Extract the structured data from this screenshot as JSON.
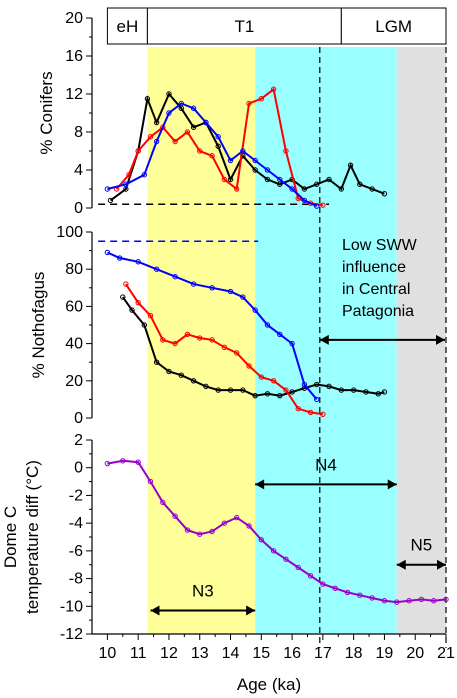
{
  "chart_data": [
    {
      "panel": "conifers",
      "type": "line",
      "ylabel": "% Conifers",
      "ylim": [
        0,
        20
      ],
      "yticks": [
        "0",
        "4",
        "8",
        "12",
        "16",
        "20"
      ],
      "intervals": [
        {
          "label": "eH",
          "from": 10,
          "to": 11.3
        },
        {
          "label": "T1",
          "from": 11.3,
          "to": 17.6
        },
        {
          "label": "LGM",
          "from": 17.6,
          "to": 21
        }
      ],
      "dashed_reference_y": 0.4,
      "series": [
        {
          "color": "#000000",
          "x": [
            10.1,
            10.6,
            11.0,
            11.3,
            11.6,
            12.0,
            12.4,
            12.8,
            13.2,
            13.6,
            14.0,
            14.4,
            14.8,
            15.2,
            15.6,
            16.0,
            16.4,
            16.8,
            17.2,
            17.6,
            17.9,
            18.2,
            18.6,
            19.0
          ],
          "y": [
            0.8,
            2.0,
            6.0,
            11.5,
            9.0,
            12.0,
            10.5,
            8.5,
            9.0,
            6.5,
            3.0,
            5.5,
            4.0,
            3.0,
            2.5,
            3.0,
            2.0,
            2.5,
            3.0,
            2.0,
            4.5,
            2.5,
            2.0,
            1.5
          ]
        },
        {
          "color": "#ff0000",
          "x": [
            10.3,
            10.7,
            11.0,
            11.4,
            11.8,
            12.2,
            12.6,
            13.0,
            13.4,
            13.8,
            14.2,
            14.6,
            15.0,
            15.4,
            15.8,
            16.2,
            16.6,
            17.0
          ],
          "y": [
            2.0,
            3.5,
            6.0,
            7.5,
            8.5,
            7.0,
            8.0,
            6.0,
            5.5,
            3.0,
            2.0,
            11.0,
            11.5,
            12.5,
            6.0,
            1.0,
            0.5,
            0.3
          ]
        },
        {
          "color": "#0000ff",
          "x": [
            10.0,
            10.6,
            11.2,
            11.6,
            12.0,
            12.4,
            12.8,
            13.2,
            13.6,
            14.0,
            14.4,
            14.8,
            15.2,
            15.6,
            16.0,
            16.4,
            16.8
          ],
          "y": [
            2.0,
            2.5,
            3.5,
            7.0,
            10.0,
            11.0,
            10.5,
            9.0,
            7.5,
            5.0,
            6.0,
            5.0,
            4.0,
            3.0,
            2.0,
            0.8,
            0.2
          ]
        }
      ]
    },
    {
      "panel": "nothofagus",
      "type": "line",
      "ylabel": "% Nothofagus",
      "ylim": [
        0,
        100
      ],
      "yticks": [
        "0",
        "20",
        "40",
        "60",
        "80",
        "100"
      ],
      "dashed_reference_y": 95,
      "series": [
        {
          "color": "#000000",
          "x": [
            10.5,
            10.8,
            11.2,
            11.6,
            12.0,
            12.4,
            12.8,
            13.2,
            13.6,
            14.0,
            14.4,
            14.8,
            15.2,
            15.6,
            16.0,
            16.4,
            16.8,
            17.2,
            17.6,
            18.0,
            18.4,
            18.8,
            19.0
          ],
          "y": [
            65,
            58,
            50,
            30,
            25,
            23,
            20,
            17,
            15,
            15,
            15,
            12,
            13,
            12,
            14,
            16,
            18,
            17,
            15,
            15,
            14,
            13,
            14
          ]
        },
        {
          "color": "#ff0000",
          "x": [
            10.6,
            11.0,
            11.4,
            11.8,
            12.2,
            12.6,
            13.0,
            13.4,
            13.8,
            14.2,
            14.6,
            15.0,
            15.4,
            15.8,
            16.2,
            16.6,
            17.0
          ],
          "y": [
            72,
            62,
            55,
            42,
            40,
            45,
            43,
            42,
            38,
            35,
            28,
            22,
            20,
            15,
            5,
            3,
            2
          ]
        },
        {
          "color": "#0000ff",
          "x": [
            10.0,
            10.4,
            11.0,
            11.6,
            12.2,
            12.8,
            13.4,
            14.0,
            14.4,
            14.8,
            15.2,
            15.6,
            16.0,
            16.4,
            16.8
          ],
          "y": [
            89,
            86,
            84,
            80,
            76,
            72,
            70,
            68,
            65,
            58,
            50,
            45,
            40,
            18,
            10
          ]
        }
      ],
      "annotations": [
        "Low SWW",
        "influence",
        "in Central",
        "Patagonia"
      ]
    },
    {
      "panel": "dome_c",
      "type": "line",
      "ylabel_lines": [
        "Dome C",
        "temperature diff (°C)"
      ],
      "xlabel": "Age (ka)",
      "ylim": [
        -12,
        2
      ],
      "xlim": [
        9.5,
        21
      ],
      "yticks": [
        "-12",
        "-10",
        "-8",
        "-6",
        "-4",
        "-2",
        "0",
        "2"
      ],
      "xticks": [
        "10",
        "11",
        "12",
        "13",
        "14",
        "15",
        "16",
        "17",
        "18",
        "19",
        "20",
        "21"
      ],
      "series": [
        {
          "color": "#9900cc",
          "x": [
            10.0,
            10.5,
            11.0,
            11.4,
            11.8,
            12.2,
            12.6,
            13.0,
            13.4,
            13.8,
            14.2,
            14.6,
            15.0,
            15.4,
            15.8,
            16.2,
            16.6,
            17.0,
            17.4,
            17.8,
            18.2,
            18.6,
            19.0,
            19.4,
            19.8,
            20.2,
            20.6,
            21.0
          ],
          "y": [
            0.3,
            0.5,
            0.4,
            -1.0,
            -2.5,
            -3.5,
            -4.5,
            -4.8,
            -4.6,
            -4.0,
            -3.6,
            -4.2,
            -5.2,
            -6.0,
            -6.6,
            -7.2,
            -7.8,
            -8.4,
            -8.7,
            -9.0,
            -9.2,
            -9.4,
            -9.6,
            -9.7,
            -9.6,
            -9.5,
            -9.6,
            -9.5
          ]
        }
      ],
      "range_markers": [
        {
          "label": "N3",
          "from": 11.4,
          "to": 14.8,
          "y": -10.3
        },
        {
          "label": "N4",
          "from": 14.8,
          "to": 19.4,
          "y": -1.2
        },
        {
          "label": "N5",
          "from": 19.4,
          "to": 21,
          "y": -7.0
        }
      ]
    }
  ],
  "background_bands": [
    {
      "from": 11.3,
      "to": 14.8,
      "color": "#ffff99"
    },
    {
      "from": 14.8,
      "to": 19.4,
      "color": "#99ffff"
    },
    {
      "from": 19.4,
      "to": 21,
      "color": "#e0e0e0"
    }
  ],
  "dashed_verticals": [
    16.9,
    21
  ]
}
